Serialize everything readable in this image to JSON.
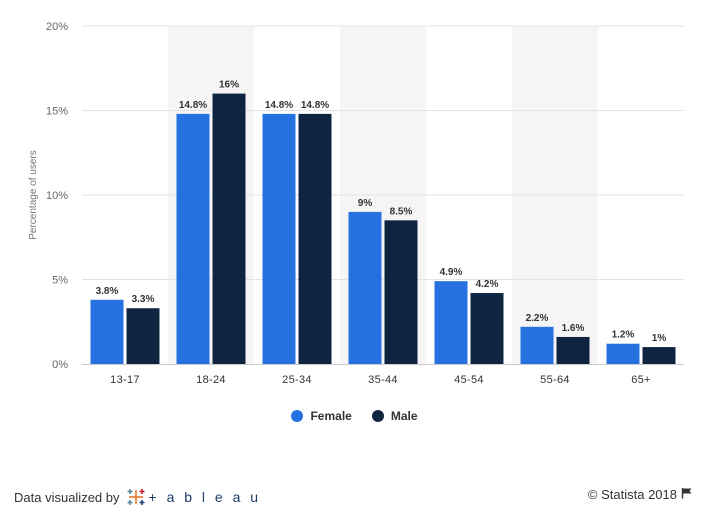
{
  "chart_data": {
    "type": "bar",
    "title": "",
    "xlabel": "",
    "ylabel": "Percentage of users",
    "categories": [
      "13-17",
      "18-24",
      "25-34",
      "35-44",
      "45-54",
      "55-64",
      "65+"
    ],
    "series": [
      {
        "name": "Female",
        "color": "#2571e0",
        "values": [
          3.8,
          14.8,
          14.8,
          9,
          4.9,
          2.2,
          1.2
        ],
        "labels": [
          "3.8%",
          "14.8%",
          "14.8%",
          "9%",
          "4.9%",
          "2.2%",
          "1.2%"
        ]
      },
      {
        "name": "Male",
        "color": "#0e2440",
        "values": [
          3.3,
          16,
          14.8,
          8.5,
          4.2,
          1.6,
          1
        ],
        "labels": [
          "3.3%",
          "16%",
          "14.8%",
          "8.5%",
          "4.2%",
          "1.6%",
          "1%"
        ]
      }
    ],
    "ylim": [
      0,
      20
    ],
    "yticks": [
      0,
      5,
      10,
      15,
      20
    ],
    "ytick_labels": [
      "0%",
      "5%",
      "10%",
      "15%",
      "20%"
    ],
    "grid": true,
    "alternating_band_color": "#f5f5f5",
    "legend_position": "bottom-center"
  },
  "legend": {
    "female": "Female",
    "male": "Male"
  },
  "footer": {
    "credit": "Data visualized by",
    "tableau_text": "+ a b l e a u",
    "copyright": "© Statista 2018"
  },
  "icons": {
    "tableau": "tableau-logo-icon",
    "flag": "flag-icon"
  }
}
